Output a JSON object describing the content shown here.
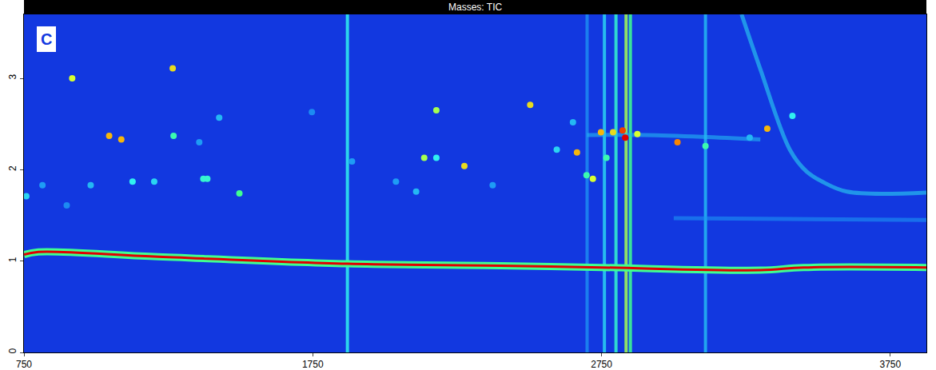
{
  "chart_data": {
    "type": "heatmap",
    "title": "Masses: TIC",
    "panel_label": "C",
    "xlim": [
      750,
      3875
    ],
    "xticks": [
      750,
      1750,
      2750,
      3750
    ],
    "ylim": [
      0,
      3.7
    ],
    "yticks": [
      0,
      1,
      2,
      3
    ],
    "zlim": [
      0,
      100
    ],
    "grid": false,
    "peaks": {
      "x": [
        917,
        1265,
        1045,
        1087,
        1268,
        1201,
        1126,
        1371,
        1385,
        1496,
        758,
        1426,
        1357,
        2136,
        2178,
        2275,
        2178,
        2503,
        2595,
        2665,
        2698,
        2720,
        2748,
        2767,
        2790,
        2823,
        2832,
        2874,
        3013,
        3110,
        3324,
        3411,
        2108,
        2038,
        2373,
        2651,
        3263,
        1886,
        1747,
        981,
        814,
        898
      ],
      "y": [
        3.0,
        3.11,
        2.37,
        2.33,
        2.37,
        1.87,
        1.87,
        1.9,
        1.9,
        1.74,
        1.71,
        2.57,
        2.3,
        2.13,
        2.13,
        2.04,
        2.65,
        2.71,
        2.22,
        2.19,
        1.94,
        1.9,
        2.41,
        2.13,
        2.41,
        2.43,
        2.35,
        2.39,
        2.3,
        2.26,
        2.45,
        2.59,
        1.76,
        1.87,
        1.83,
        2.52,
        2.35,
        2.09,
        2.63,
        1.83,
        1.83,
        1.61
      ],
      "z": [
        75,
        80,
        85,
        85,
        55,
        40,
        45,
        50,
        50,
        60,
        40,
        35,
        30,
        70,
        45,
        80,
        70,
        80,
        40,
        85,
        55,
        75,
        85,
        55,
        80,
        95,
        100,
        75,
        90,
        55,
        85,
        45,
        35,
        30,
        30,
        35,
        35,
        30,
        25,
        35,
        30,
        25
      ]
    },
    "streaks": {
      "x": [
        1870,
        2700,
        2760,
        2800,
        2835,
        2850,
        3110
      ],
      "z": [
        45,
        25,
        40,
        50,
        70,
        60,
        35
      ]
    },
    "lines": [
      {
        "x": [
          750,
          800,
          1200,
          1870,
          2400,
          2750,
          3300,
          3450,
          3875
        ],
        "y": [
          1.07,
          1.1,
          1.05,
          0.97,
          0.95,
          0.93,
          0.9,
          0.93,
          0.93
        ],
        "z": 100
      },
      {
        "x": [
          3235,
          3300,
          3402,
          3460,
          3514,
          3600,
          3875
        ],
        "y": [
          3.7,
          3.1,
          2.22,
          1.98,
          1.87,
          1.76,
          1.75
        ],
        "z": 40
      },
      {
        "x": [
          2700,
          2900,
          3100,
          3300
        ],
        "y": [
          2.38,
          2.38,
          2.36,
          2.33
        ],
        "z": 35
      },
      {
        "x": [
          3000,
          3400,
          3875
        ],
        "y": [
          1.47,
          1.46,
          1.45
        ],
        "z": 28
      }
    ]
  }
}
